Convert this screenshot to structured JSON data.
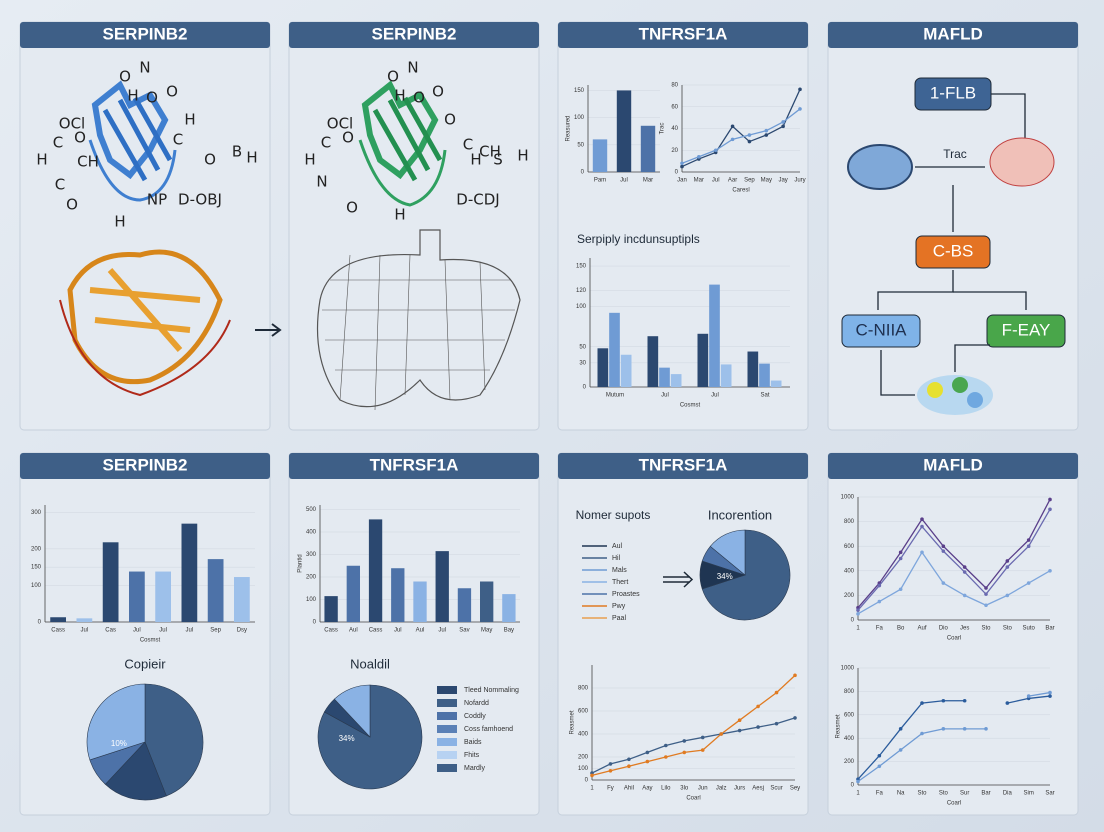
{
  "panels": [
    {
      "title": "SERPINB2"
    },
    {
      "title": "SERPINB2"
    },
    {
      "title": "TNFRSF1A"
    },
    {
      "title": "MAFLD"
    },
    {
      "title": "SERPINB2"
    },
    {
      "title": "TNFRSF1A"
    },
    {
      "title": "TNFRSF1A"
    },
    {
      "title": "MAFLD"
    }
  ],
  "molecules": [
    {
      "labels": [
        "O",
        "N",
        "H",
        "O",
        "O",
        "OCl",
        "H",
        "C",
        "O",
        "H",
        "C",
        "O",
        "CH",
        "B",
        "H",
        "C",
        "NP",
        "D-OBJ",
        "H",
        "O"
      ]
    },
    {
      "labels": [
        "O",
        "N",
        "H",
        "O",
        "O",
        "OCl",
        "H",
        "C",
        "O",
        "N",
        "C",
        "CH",
        "O",
        "H",
        "S",
        "H",
        "D-CDJ",
        "H",
        "O"
      ]
    }
  ],
  "diagram": {
    "nodes": [
      {
        "label": "1-FLB"
      },
      {
        "label": "C-BS"
      },
      {
        "label": "C-NIIA"
      },
      {
        "label": "F-EAY"
      }
    ],
    "edge_label": "Trac"
  },
  "chart_data": [
    {
      "type": "bar",
      "y_label": "Reasured",
      "categories": [
        "Pam",
        "Jul",
        "Mar"
      ],
      "values": [
        60,
        150,
        85
      ],
      "colors": [
        "#6f9bd4",
        "#2b4870",
        "#4d72a8"
      ],
      "ylim": [
        0,
        160
      ],
      "yticks": [
        0,
        50,
        100,
        150
      ]
    },
    {
      "type": "line",
      "y_label": "Trac",
      "x_label": "Caresl",
      "categories": [
        "Jan",
        "Mar",
        "Jul",
        "Aar",
        "Sep",
        "May",
        "Jay",
        "Jury"
      ],
      "series": [
        {
          "color": "#2b4870",
          "values": [
            5,
            12,
            18,
            42,
            28,
            34,
            42,
            76
          ]
        },
        {
          "color": "#6f9bd4",
          "values": [
            8,
            14,
            20,
            30,
            34,
            38,
            46,
            58
          ]
        }
      ],
      "ylim": [
        0,
        80
      ],
      "yticks": [
        0,
        20,
        40,
        60,
        80
      ]
    },
    {
      "type": "grouped_bar",
      "title": "Serpiply incdunsuptipls",
      "x_label": "Cosmst",
      "categories": [
        "Mutum",
        "Jul",
        "Jul",
        "Sat"
      ],
      "series": [
        {
          "color": "#2b4870",
          "values": [
            48,
            63,
            66,
            44
          ]
        },
        {
          "color": "#6f9bd4",
          "values": [
            92,
            24,
            127,
            29
          ]
        },
        {
          "color": "#9dc0ea",
          "values": [
            40,
            16,
            28,
            8
          ]
        }
      ],
      "ylim": [
        0,
        160
      ],
      "yticks": [
        0,
        30,
        50,
        100,
        120,
        150
      ]
    },
    {
      "type": "bar",
      "x_label": "Cosmst",
      "categories": [
        "Cass",
        "Jul",
        "Cas",
        "Jul",
        "Jul",
        "Jul",
        "Sep",
        "Dsy"
      ],
      "values": [
        13,
        10,
        218,
        138,
        138,
        269,
        172,
        123
      ],
      "colors": [
        "#2b4870",
        "#9dc0ea",
        "#2b4870",
        "#4d72a8",
        "#9dc0ea",
        "#2b4870",
        "#4d72a8",
        "#9dc0ea"
      ],
      "ylim": [
        0,
        320
      ],
      "yticks": [
        0,
        100,
        150,
        200,
        300
      ]
    },
    {
      "type": "pie",
      "title": "Copieir",
      "label": "10%",
      "values": [
        44,
        18,
        8,
        30
      ],
      "colors": [
        "#3e5f87",
        "#2b4870",
        "#4d72a8",
        "#8ab2e4"
      ]
    },
    {
      "type": "bar",
      "y_label": "Plantid",
      "categories": [
        "Cass",
        "Aul",
        "Cass",
        "Jul",
        "Aul",
        "Jul",
        "Sav",
        "May",
        "Bay"
      ],
      "values": [
        115,
        250,
        456,
        239,
        180,
        315,
        150,
        180,
        124
      ],
      "colors": [
        "#2b4870",
        "#4d72a8",
        "#2b4870",
        "#4d72a8",
        "#8ab2e4",
        "#2b4870",
        "#4d72a8",
        "#3e5f87",
        "#8ab2e4"
      ],
      "ylim": [
        0,
        520
      ],
      "yticks": [
        0,
        100,
        200,
        300,
        400,
        500
      ]
    },
    {
      "type": "pie",
      "title": "Noaldil",
      "label": "34%",
      "values": [
        83,
        5,
        12
      ],
      "colors": [
        "#3e5f87",
        "#2b4870",
        "#8ab2e4"
      ],
      "legend": [
        {
          "name": "Tleed Nommaling",
          "color": "#2b4870"
        },
        {
          "name": "Nofardd",
          "color": "#3e5f87"
        },
        {
          "name": "Coddly",
          "color": "#4d72a8"
        },
        {
          "name": "Coss famhoend",
          "color": "#5a80b6"
        },
        {
          "name": "Baids",
          "color": "#8ab2e4"
        },
        {
          "name": "Fhits",
          "color": "#b7d2f2"
        },
        {
          "name": "Mardly",
          "color": "#3e5f87"
        }
      ]
    },
    {
      "type": "pie",
      "title": "Incorention",
      "label": "34%",
      "values": [
        70,
        10,
        6,
        14
      ],
      "colors": [
        "#3e5f87",
        "#1f3552",
        "#4d72a8",
        "#8ab2e4"
      ],
      "legend_title": "Nomer supots",
      "legend": [
        {
          "name": "Aul",
          "color": "#1f3552"
        },
        {
          "name": "Hil",
          "color": "#3e5f87"
        },
        {
          "name": "Mals",
          "color": "#6f9bd4"
        },
        {
          "name": "Thert",
          "color": "#8ab2e4"
        },
        {
          "name": "Proastes",
          "color": "#4d72a8"
        },
        {
          "name": "Pwy",
          "color": "#e07b22"
        },
        {
          "name": "Paal",
          "color": "#e8a050"
        }
      ]
    },
    {
      "type": "line",
      "y_label": "Reasmet",
      "x_label": "Coarl",
      "categories": [
        "1",
        "Fy",
        "Ahil",
        "Aay",
        "Lilo",
        "3lo",
        "Jun",
        "Jalz",
        "Jurs",
        "Aesj",
        "Scur",
        "Sey"
      ],
      "series": [
        {
          "color": "#3e5f87",
          "values": [
            60,
            140,
            180,
            240,
            300,
            340,
            370,
            400,
            430,
            460,
            490,
            540
          ]
        },
        {
          "color": "#e07b22",
          "values": [
            40,
            80,
            120,
            160,
            200,
            240,
            260,
            400,
            520,
            640,
            760,
            910
          ]
        }
      ],
      "ylim": [
        0,
        1000
      ],
      "yticks": [
        0,
        100,
        200,
        400,
        600,
        800
      ]
    },
    {
      "type": "line",
      "x_label": "Coarl",
      "categories": [
        "1",
        "Fa",
        "Bo",
        "Auf",
        "Dio",
        "Jes",
        "Sto",
        "Sto",
        "Suto",
        "Bar"
      ],
      "series": [
        {
          "color": "#5a3f8a",
          "values": [
            100,
            300,
            550,
            820,
            600,
            430,
            260,
            480,
            650,
            980
          ]
        },
        {
          "color": "#6a6ab0",
          "values": [
            80,
            280,
            500,
            760,
            560,
            390,
            210,
            430,
            600,
            900
          ]
        },
        {
          "color": "#7ea6dc",
          "values": [
            50,
            150,
            250,
            550,
            300,
            200,
            120,
            200,
            300,
            400
          ]
        }
      ],
      "ylim": [
        0,
        1000
      ],
      "yticks": [
        0,
        200,
        400,
        600,
        800,
        1000
      ]
    },
    {
      "type": "line",
      "y_label": "Reasmet",
      "x_label": "Coarl",
      "categories": [
        "1",
        "Fa",
        "Na",
        "Sto",
        "Sto",
        "Sur",
        "Bar",
        "Dia",
        "Sim",
        "Sar"
      ],
      "series": [
        {
          "color": "#2b5c9c",
          "values": [
            50,
            250,
            480,
            700,
            720,
            720,
            null,
            700,
            740,
            760
          ]
        },
        {
          "color": "#6f9bd4",
          "values": [
            30,
            160,
            300,
            440,
            480,
            480,
            480,
            null,
            760,
            790
          ]
        }
      ],
      "ylim": [
        0,
        1000
      ],
      "yticks": [
        0,
        200,
        400,
        600,
        800,
        1000
      ]
    }
  ]
}
